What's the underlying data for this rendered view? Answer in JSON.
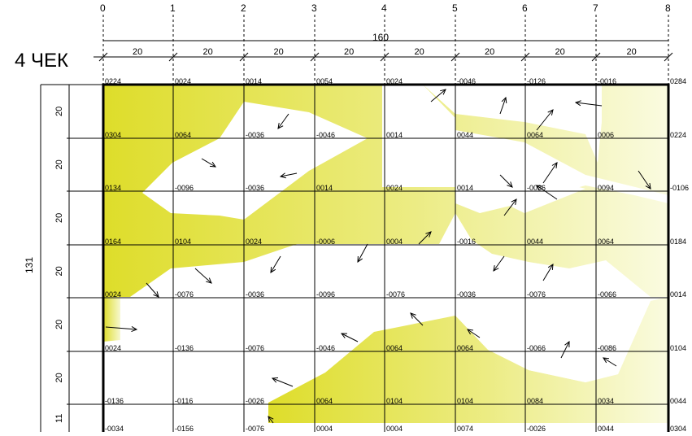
{
  "title": "4 ЧЕК",
  "total_width_label": "160",
  "total_height_label": "131",
  "col_axis_labels": [
    "0",
    "1",
    "2",
    "3",
    "4",
    "5",
    "6",
    "7",
    "8"
  ],
  "col_span_labels": [
    "20",
    "20",
    "20",
    "20",
    "20",
    "20",
    "20",
    "20"
  ],
  "row_span_labels": [
    "20",
    "20",
    "20",
    "20",
    "20",
    "20",
    "11"
  ],
  "node_values": [
    [
      "0224",
      "0024",
      "0014",
      "0054",
      "0024",
      "-0046",
      "-0126",
      "-0016",
      "0284"
    ],
    [
      "0304",
      "0064",
      "-0036",
      "-0046",
      "0014",
      "0044",
      "0064",
      "0006",
      "0224"
    ],
    [
      "0134",
      "-0096",
      "-0036",
      "0014",
      "0024",
      "0014",
      "-0036",
      "0094",
      "-0106"
    ],
    [
      "0164",
      "0104",
      "0024",
      "-0006",
      "0004",
      "-0016",
      "0044",
      "0064",
      "0184"
    ],
    [
      "0024",
      "-0076",
      "-0036",
      "-0096",
      "-0076",
      "-0036",
      "-0076",
      "-0066",
      "0014"
    ],
    [
      "0024",
      "-0136",
      "-0076",
      "-0046",
      "0064",
      "0064",
      "-0066",
      "-0086",
      "0104"
    ],
    [
      "-0136",
      "-0116",
      "-0026",
      "0064",
      "0104",
      "0104",
      "0084",
      "0034",
      "0044"
    ],
    [
      "-0034",
      "-0156",
      "-0076",
      "0004",
      "0004",
      "0074",
      "-0026",
      "0044",
      "0304"
    ]
  ],
  "colors": {
    "fill_strong": "#dedd2a",
    "fill_light": "#fafbe0",
    "line": "#000000",
    "background": "#ffffff"
  }
}
